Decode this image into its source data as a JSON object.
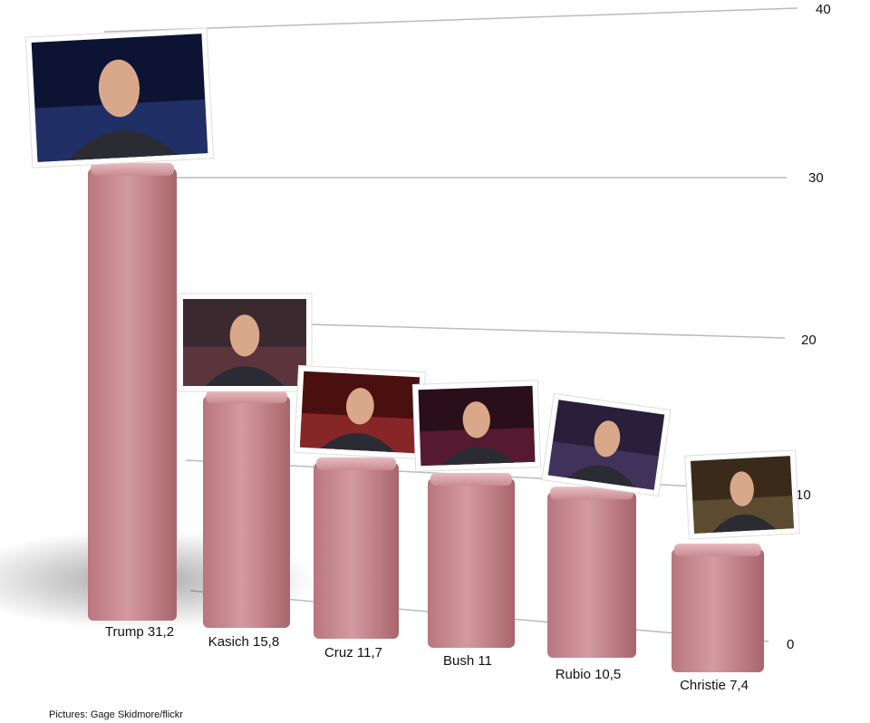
{
  "chart_data": {
    "type": "bar",
    "categories": [
      "Trump",
      "Kasich",
      "Cruz",
      "Bush",
      "Rubio",
      "Christie"
    ],
    "values": [
      31.2,
      15.8,
      11.7,
      11,
      10.5,
      7.4
    ],
    "bar_labels": [
      "Trump 31,2",
      "Kasich 15,8",
      "Cruz 11,7",
      "Bush 11",
      "Rubio 10,5",
      "Christie 7,4"
    ],
    "yticks": [
      "0",
      "10",
      "20",
      "30",
      "40"
    ],
    "ylim": [
      0,
      40
    ],
    "grid": true,
    "bar_color": "#c98b91"
  },
  "credit": "Pictures: Gage Skidmore/flickr"
}
